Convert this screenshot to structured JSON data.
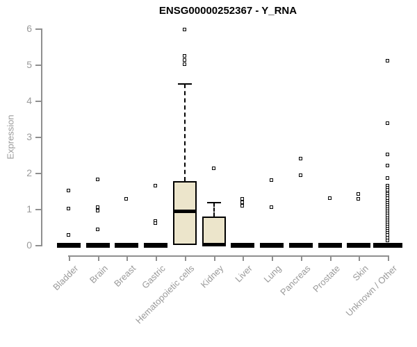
{
  "page": {
    "background": "#ffffff"
  },
  "chart_data": {
    "type": "boxplot",
    "title": "ENSG00000252367 - Y_RNA",
    "ylabel": "Expression",
    "ylim": [
      0,
      6
    ],
    "yticks": [
      0,
      1,
      2,
      3,
      4,
      5,
      6
    ],
    "grid": false,
    "legend": null,
    "categories": [
      "Bladder",
      "Brain",
      "Breast",
      "Gastric",
      "Hematopoietic cells",
      "Kidney",
      "Liver",
      "Lung",
      "Pancreas",
      "Prostate",
      "Skin",
      "Unknown / Other"
    ],
    "colors": {
      "box_fill": "#ece5cb",
      "box_border": "#000000",
      "axis": "#8f8f8f",
      "tick_label": "#9a9a9a",
      "title": "#000000"
    },
    "boxes": [
      {
        "category": "Bladder",
        "q1": 0,
        "median": 0,
        "q3": 0,
        "whisker_low": 0,
        "whisker_high": 0,
        "outliers": [
          1.5,
          1.0,
          0.27
        ]
      },
      {
        "category": "Brain",
        "q1": 0,
        "median": 0,
        "q3": 0,
        "whisker_low": 0,
        "whisker_high": 0,
        "outliers": [
          1.81,
          1.04,
          0.94,
          0.42
        ]
      },
      {
        "category": "Breast",
        "q1": 0,
        "median": 0,
        "q3": 0,
        "whisker_low": 0,
        "whisker_high": 0,
        "outliers": [
          1.27
        ]
      },
      {
        "category": "Gastric",
        "q1": 0,
        "median": 0,
        "q3": 0,
        "whisker_low": 0,
        "whisker_high": 0,
        "outliers": [
          1.63,
          0.66,
          0.6
        ]
      },
      {
        "category": "Hematopoietic cells",
        "q1": 0,
        "median": 0.95,
        "q3": 1.77,
        "whisker_low": 0,
        "whisker_high": 4.46,
        "outliers": [
          5.96,
          5.23,
          5.12,
          5.0
        ]
      },
      {
        "category": "Kidney",
        "q1": 0,
        "median": 0.02,
        "q3": 0.79,
        "whisker_low": 0,
        "whisker_high": 1.18,
        "outliers": [
          2.12
        ]
      },
      {
        "category": "Liver",
        "q1": 0,
        "median": 0,
        "q3": 0,
        "whisker_low": 0,
        "whisker_high": 0,
        "outliers": [
          1.27,
          1.17,
          1.08
        ]
      },
      {
        "category": "Lung",
        "q1": 0,
        "median": 0,
        "q3": 0,
        "whisker_low": 0,
        "whisker_high": 0,
        "outliers": [
          1.79,
          1.04
        ]
      },
      {
        "category": "Pancreas",
        "q1": 0,
        "median": 0,
        "q3": 0,
        "whisker_low": 0,
        "whisker_high": 0,
        "outliers": [
          2.38,
          1.92
        ]
      },
      {
        "category": "Prostate",
        "q1": 0,
        "median": 0,
        "q3": 0,
        "whisker_low": 0,
        "whisker_high": 0,
        "outliers": [
          1.29
        ]
      },
      {
        "category": "Skin",
        "q1": 0,
        "median": 0,
        "q3": 0,
        "whisker_low": 0,
        "whisker_high": 0,
        "outliers": [
          1.4,
          1.27
        ]
      },
      {
        "category": "Unknown / Other",
        "q1": 0,
        "median": 0,
        "q3": 0,
        "whisker_low": 0,
        "whisker_high": 0,
        "width": 42,
        "outliers": [
          5.1,
          3.37,
          2.5,
          2.19,
          1.85,
          1.63,
          1.57,
          1.51,
          1.45,
          1.4,
          1.34,
          1.28,
          1.22,
          1.16,
          1.1,
          1.04,
          0.98,
          0.92,
          0.86,
          0.8,
          0.74,
          0.68,
          0.62,
          0.56,
          0.5,
          0.44,
          0.38,
          0.32,
          0.26,
          0.19,
          0.12
        ]
      }
    ]
  }
}
